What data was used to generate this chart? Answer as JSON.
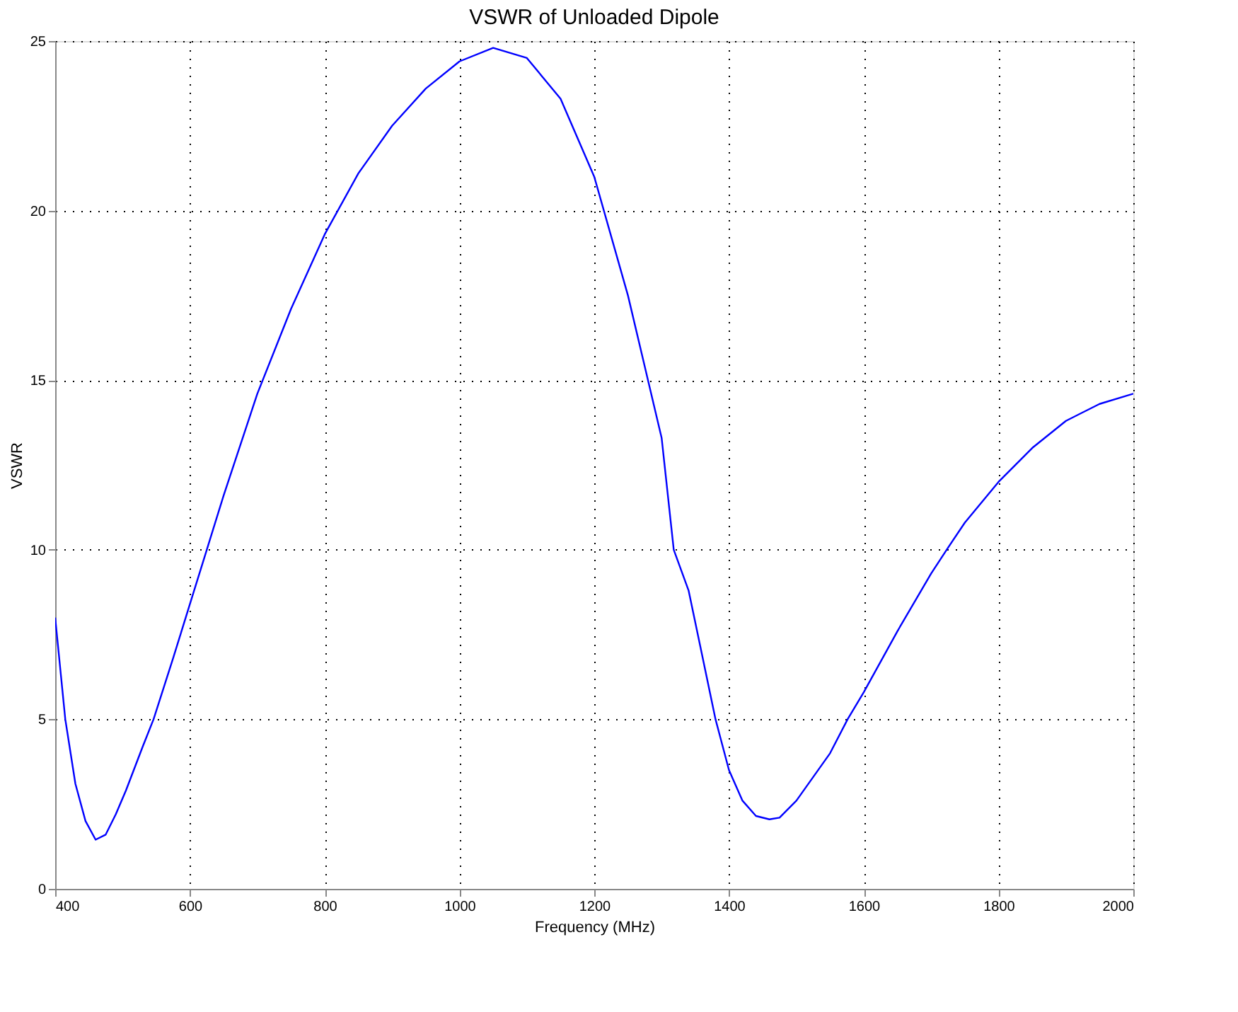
{
  "chart_data": {
    "type": "line",
    "title": "VSWR of Unloaded Dipole",
    "xlabel": "Frequency (MHz)",
    "ylabel": "VSWR",
    "x": [
      400,
      415,
      430,
      445,
      460,
      475,
      490,
      505,
      530,
      546,
      575,
      600,
      625,
      650,
      700,
      750,
      800,
      850,
      900,
      950,
      1000,
      1050,
      1100,
      1150,
      1200,
      1250,
      1300,
      1318,
      1340,
      1360,
      1380,
      1400,
      1420,
      1440,
      1460,
      1475,
      1500,
      1550,
      1576,
      1600,
      1650,
      1700,
      1723,
      1750,
      1800,
      1850,
      1900,
      1950,
      2000
    ],
    "series": [
      {
        "color": "#0000ff",
        "values": [
          8.0,
          5.0,
          3.1,
          2.0,
          1.45,
          1.6,
          2.2,
          2.9,
          4.2,
          5.0,
          6.8,
          8.4,
          10.0,
          11.6,
          14.6,
          17.1,
          19.3,
          21.1,
          22.5,
          23.6,
          24.4,
          24.8,
          24.5,
          23.3,
          21.0,
          17.5,
          13.3,
          10.0,
          8.8,
          6.9,
          5.0,
          3.5,
          2.6,
          2.15,
          2.05,
          2.1,
          2.6,
          4.0,
          5.0,
          5.8,
          7.6,
          9.3,
          10.0,
          10.8,
          12.0,
          13.0,
          13.8,
          14.3,
          14.6
        ]
      }
    ],
    "xlim": [
      400,
      2000
    ],
    "xticks": [
      400,
      600,
      800,
      1000,
      1200,
      1400,
      1600,
      1800,
      2000
    ],
    "ylim": [
      0,
      25
    ],
    "yticks": [
      0,
      5,
      10,
      15,
      20,
      25
    ],
    "grid": true,
    "marker": "none",
    "line_style": "solid"
  }
}
